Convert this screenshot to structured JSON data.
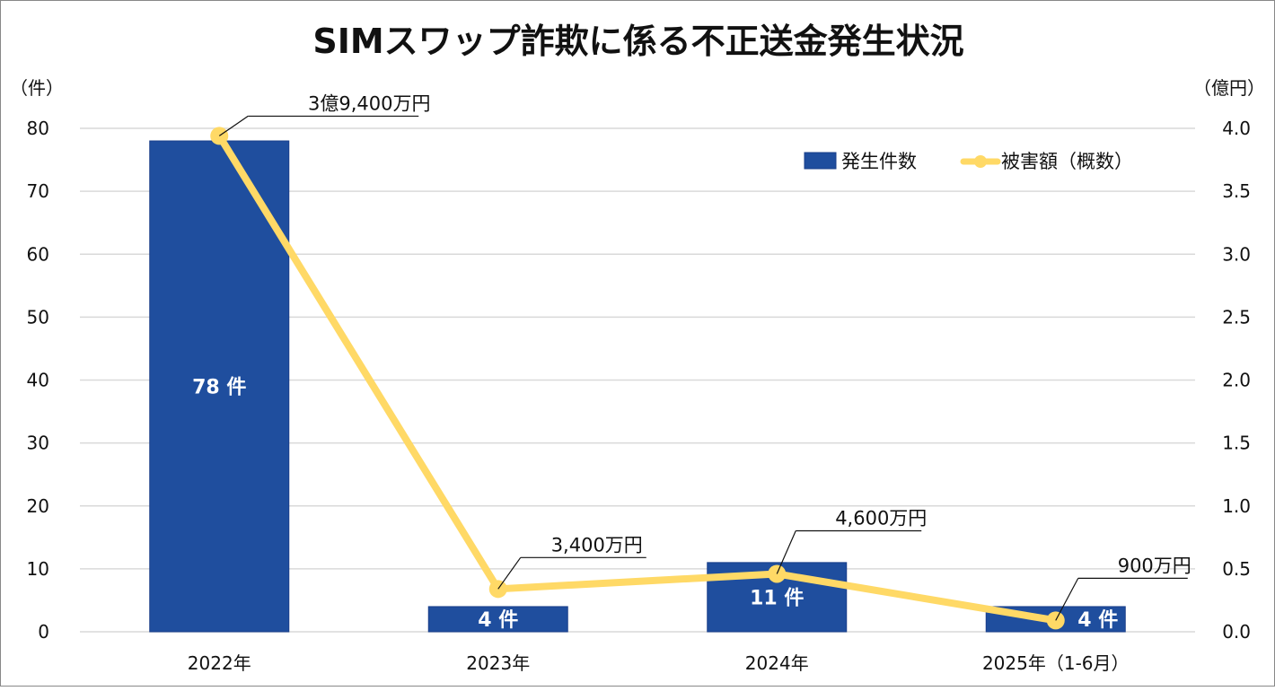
{
  "chart_data": {
    "type": "bar+line",
    "title": "SIMスワップ詐欺に係る不正送金発生状況",
    "categories": [
      "2022年",
      "2023年",
      "2024年",
      "2025年（1-6月）"
    ],
    "series": [
      {
        "name": "発生件数",
        "type": "bar",
        "axis": "left",
        "values": [
          78,
          4,
          11,
          4
        ],
        "data_labels": [
          "78 件",
          "4 件",
          "11 件",
          "4 件"
        ],
        "color": "#1f4e9e"
      },
      {
        "name": "被害額（概数）",
        "type": "line",
        "axis": "right",
        "values": [
          3.94,
          0.34,
          0.46,
          0.09
        ],
        "data_labels": [
          "3億9,400万円",
          "3,400万円",
          "4,600万円",
          "900万円"
        ],
        "color": "#ffd966"
      }
    ],
    "left_axis": {
      "label": "（件）",
      "ylim": [
        0,
        80
      ],
      "ticks": [
        "0",
        "10",
        "20",
        "30",
        "40",
        "50",
        "60",
        "70",
        "80"
      ]
    },
    "right_axis": {
      "label": "（億円）",
      "ylim": [
        0,
        4.0
      ],
      "ticks": [
        "0.0",
        "0.5",
        "1.0",
        "1.5",
        "2.0",
        "2.5",
        "3.0",
        "3.5",
        "4.0"
      ]
    },
    "grid": true,
    "legend_position": "top-right"
  }
}
